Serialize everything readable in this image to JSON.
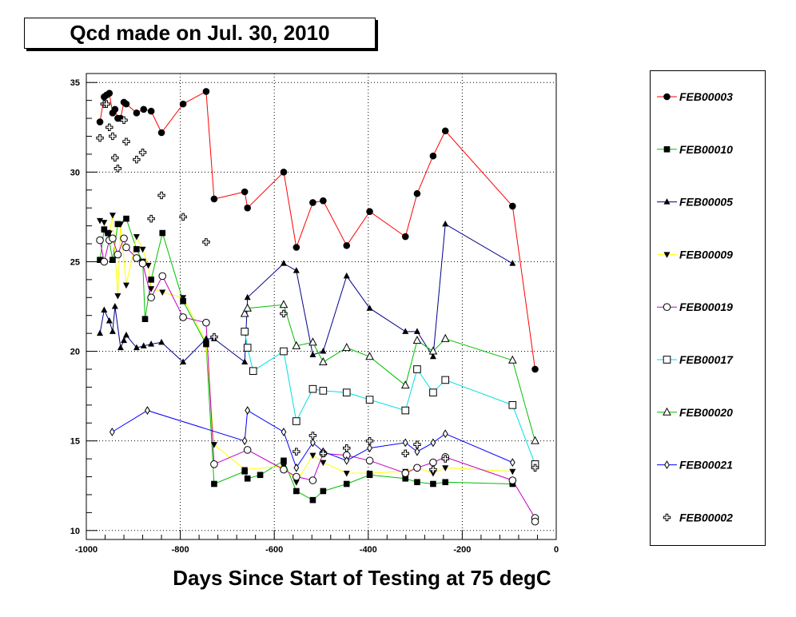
{
  "chart_data": {
    "type": "line",
    "title": "Qcd made on Jul. 30, 2010",
    "xlabel": "Days Since Start of Testing at 75 degC",
    "ylabel": "",
    "xlim": [
      -1000,
      0
    ],
    "ylim": [
      9.5,
      35.5
    ],
    "grid": true,
    "legend_position": "right",
    "x_ticks": [
      -1000,
      -800,
      -600,
      -400,
      -200,
      0
    ],
    "x_tick_labels": [
      "-1000",
      "-800",
      "-600",
      "-400",
      "-200",
      "0"
    ],
    "y_ticks": [
      10,
      15,
      20,
      25,
      30,
      35
    ],
    "y_tick_labels": [
      "10",
      "15",
      "20",
      "25",
      "30",
      "35"
    ],
    "series": [
      {
        "name": "FEB00003",
        "color": "#ff0000",
        "marker": "circle-filled",
        "line": true,
        "points": [
          [
            -971,
            32.8
          ],
          [
            -962,
            34.2
          ],
          [
            -957,
            34.3
          ],
          [
            -951,
            34.4
          ],
          [
            -944,
            33.3
          ],
          [
            -939,
            33.5
          ],
          [
            -933,
            33.0
          ],
          [
            -927,
            33.0
          ],
          [
            -920,
            33.9
          ],
          [
            -915,
            33.8
          ],
          [
            -893,
            33.3
          ],
          [
            -878,
            33.5
          ],
          [
            -862,
            33.4
          ],
          [
            -840,
            32.2
          ],
          [
            -794,
            33.8
          ],
          [
            -745,
            34.5
          ],
          [
            -728,
            28.5
          ],
          [
            -663,
            28.9
          ],
          [
            -657,
            28.0
          ],
          [
            -580,
            30.0
          ],
          [
            -553,
            25.8
          ],
          [
            -518,
            28.3
          ],
          [
            -496,
            28.4
          ],
          [
            -446,
            25.9
          ],
          [
            -397,
            27.8
          ],
          [
            -321,
            26.4
          ],
          [
            -296,
            28.8
          ],
          [
            -262,
            30.9
          ],
          [
            -236,
            32.3
          ],
          [
            -93,
            28.1
          ],
          [
            -45,
            19.0
          ]
        ]
      },
      {
        "name": "FEB00010",
        "color": "#00c000",
        "marker": "square-filled",
        "line": true,
        "points": [
          [
            -971,
            25.1
          ],
          [
            -962,
            26.8
          ],
          [
            -954,
            26.6
          ],
          [
            -944,
            25.1
          ],
          [
            -933,
            27.1
          ],
          [
            -915,
            27.4
          ],
          [
            -893,
            25.7
          ],
          [
            -880,
            25.0
          ],
          [
            -875,
            21.8
          ],
          [
            -862,
            24.0
          ],
          [
            -838,
            26.6
          ],
          [
            -794,
            22.8
          ],
          [
            -745,
            20.4
          ],
          [
            -728,
            12.6
          ],
          [
            -663,
            13.3
          ],
          [
            -657,
            12.9
          ],
          [
            -630,
            13.1
          ],
          [
            -580,
            13.9
          ],
          [
            -553,
            12.2
          ],
          [
            -518,
            11.7
          ],
          [
            -496,
            12.2
          ],
          [
            -446,
            12.6
          ],
          [
            -397,
            13.1
          ],
          [
            -321,
            12.9
          ],
          [
            -296,
            12.7
          ],
          [
            -262,
            12.6
          ],
          [
            -236,
            12.7
          ],
          [
            -93,
            12.6
          ]
        ]
      },
      {
        "name": "FEB00005",
        "color": "#00008b",
        "marker": "triangle-up-filled",
        "line": true,
        "points": [
          [
            -971,
            21.0
          ],
          [
            -962,
            22.3
          ],
          [
            -951,
            21.7
          ],
          [
            -944,
            21.1
          ],
          [
            -939,
            22.5
          ],
          [
            -927,
            20.2
          ],
          [
            -920,
            20.6
          ],
          [
            -915,
            20.9
          ],
          [
            -893,
            20.2
          ],
          [
            -878,
            20.3
          ],
          [
            -862,
            20.4
          ],
          [
            -840,
            20.5
          ],
          [
            -794,
            19.4
          ],
          [
            -745,
            20.7
          ],
          [
            -728,
            20.7
          ],
          [
            -663,
            19.4
          ],
          [
            -657,
            23.0
          ],
          [
            -580,
            24.9
          ],
          [
            -553,
            24.5
          ],
          [
            -518,
            19.8
          ],
          [
            -496,
            20.0
          ],
          [
            -446,
            24.2
          ],
          [
            -397,
            22.4
          ],
          [
            -321,
            21.1
          ],
          [
            -296,
            21.1
          ],
          [
            -262,
            19.7
          ],
          [
            -236,
            27.1
          ],
          [
            -93,
            24.9
          ]
        ]
      },
      {
        "name": "FEB00009",
        "color": "#ffff00",
        "marker": "triangle-down-filled",
        "line": true,
        "points": [
          [
            -971,
            27.3
          ],
          [
            -962,
            27.2
          ],
          [
            -957,
            26.6
          ],
          [
            -951,
            26.6
          ],
          [
            -944,
            27.6
          ],
          [
            -933,
            23.1
          ],
          [
            -927,
            27.1
          ],
          [
            -915,
            23.7
          ],
          [
            -893,
            26.4
          ],
          [
            -880,
            25.7
          ],
          [
            -868,
            24.8
          ],
          [
            -862,
            23.5
          ],
          [
            -838,
            23.3
          ],
          [
            -794,
            23.0
          ],
          [
            -745,
            20.5
          ],
          [
            -728,
            14.8
          ],
          [
            -663,
            13.4
          ],
          [
            -580,
            13.6
          ],
          [
            -553,
            12.7
          ],
          [
            -518,
            14.2
          ],
          [
            -496,
            13.8
          ],
          [
            -446,
            13.2
          ],
          [
            -397,
            13.2
          ],
          [
            -321,
            13.3
          ],
          [
            -296,
            13.5
          ],
          [
            -262,
            13.2
          ],
          [
            -236,
            13.5
          ],
          [
            -93,
            13.3
          ]
        ]
      },
      {
        "name": "FEB00019",
        "color": "#c000c0",
        "marker": "circle-open",
        "line": true,
        "points": [
          [
            -971,
            26.2
          ],
          [
            -962,
            25.0
          ],
          [
            -951,
            26.2
          ],
          [
            -944,
            26.3
          ],
          [
            -933,
            25.4
          ],
          [
            -920,
            26.3
          ],
          [
            -915,
            25.8
          ],
          [
            -893,
            25.2
          ],
          [
            -880,
            24.9
          ],
          [
            -862,
            23.0
          ],
          [
            -838,
            24.2
          ],
          [
            -794,
            21.9
          ],
          [
            -745,
            21.6
          ],
          [
            -728,
            13.7
          ],
          [
            -657,
            14.5
          ],
          [
            -580,
            13.4
          ],
          [
            -553,
            13.0
          ],
          [
            -518,
            12.8
          ],
          [
            -496,
            14.3
          ],
          [
            -446,
            14.2
          ],
          [
            -397,
            13.9
          ],
          [
            -321,
            13.2
          ],
          [
            -296,
            13.5
          ],
          [
            -262,
            13.8
          ],
          [
            -236,
            14.1
          ],
          [
            -93,
            12.8
          ],
          [
            -45,
            10.7
          ],
          [
            -45,
            10.5
          ]
        ]
      },
      {
        "name": "FEB00017",
        "color": "#00e0e0",
        "marker": "square-open",
        "line": true,
        "points": [
          [
            -663,
            21.1
          ],
          [
            -657,
            20.2
          ],
          [
            -645,
            18.9
          ],
          [
            -580,
            20.0
          ],
          [
            -553,
            16.1
          ],
          [
            -518,
            17.9
          ],
          [
            -496,
            17.8
          ],
          [
            -446,
            17.7
          ],
          [
            -397,
            17.3
          ],
          [
            -321,
            16.7
          ],
          [
            -296,
            19.0
          ],
          [
            -262,
            17.7
          ],
          [
            -236,
            18.4
          ],
          [
            -93,
            17.0
          ],
          [
            -45,
            13.7
          ]
        ]
      },
      {
        "name": "FEB00020",
        "color": "#00c000",
        "marker": "triangle-up-open",
        "line": true,
        "points": [
          [
            -663,
            22.1
          ],
          [
            -657,
            22.4
          ],
          [
            -580,
            22.6
          ],
          [
            -553,
            20.3
          ],
          [
            -518,
            20.5
          ],
          [
            -496,
            19.4
          ],
          [
            -446,
            20.2
          ],
          [
            -397,
            19.7
          ],
          [
            -321,
            18.1
          ],
          [
            -296,
            20.6
          ],
          [
            -262,
            20.0
          ],
          [
            -236,
            20.7
          ],
          [
            -93,
            19.5
          ],
          [
            -45,
            15.0
          ]
        ]
      },
      {
        "name": "FEB00021",
        "color": "#0000ff",
        "marker": "diamond-open",
        "line": true,
        "points": [
          [
            -945,
            15.5
          ],
          [
            -870,
            16.7
          ],
          [
            -663,
            15.0
          ],
          [
            -657,
            16.7
          ],
          [
            -580,
            15.5
          ],
          [
            -553,
            13.5
          ],
          [
            -518,
            14.9
          ],
          [
            -496,
            14.4
          ],
          [
            -446,
            13.9
          ],
          [
            -397,
            14.6
          ],
          [
            -321,
            14.9
          ],
          [
            -296,
            14.4
          ],
          [
            -262,
            14.9
          ],
          [
            -236,
            15.4
          ],
          [
            -93,
            13.8
          ]
        ]
      },
      {
        "name": "FEB00002",
        "color": "#000000",
        "marker": "cross-open",
        "line": false,
        "points": [
          [
            -971,
            31.9
          ],
          [
            -962,
            33.8
          ],
          [
            -957,
            33.8
          ],
          [
            -951,
            32.5
          ],
          [
            -944,
            32.0
          ],
          [
            -939,
            30.8
          ],
          [
            -933,
            30.2
          ],
          [
            -920,
            32.9
          ],
          [
            -915,
            31.7
          ],
          [
            -893,
            30.7
          ],
          [
            -880,
            31.1
          ],
          [
            -862,
            27.4
          ],
          [
            -840,
            28.7
          ],
          [
            -794,
            27.5
          ],
          [
            -745,
            26.1
          ],
          [
            -728,
            20.8
          ],
          [
            -580,
            22.1
          ],
          [
            -553,
            14.4
          ],
          [
            -518,
            15.3
          ],
          [
            -496,
            14.3
          ],
          [
            -446,
            14.6
          ],
          [
            -397,
            15.0
          ],
          [
            -321,
            14.3
          ],
          [
            -296,
            14.8
          ],
          [
            -262,
            13.4
          ],
          [
            -236,
            14.0
          ],
          [
            -45,
            13.5
          ]
        ]
      }
    ]
  }
}
